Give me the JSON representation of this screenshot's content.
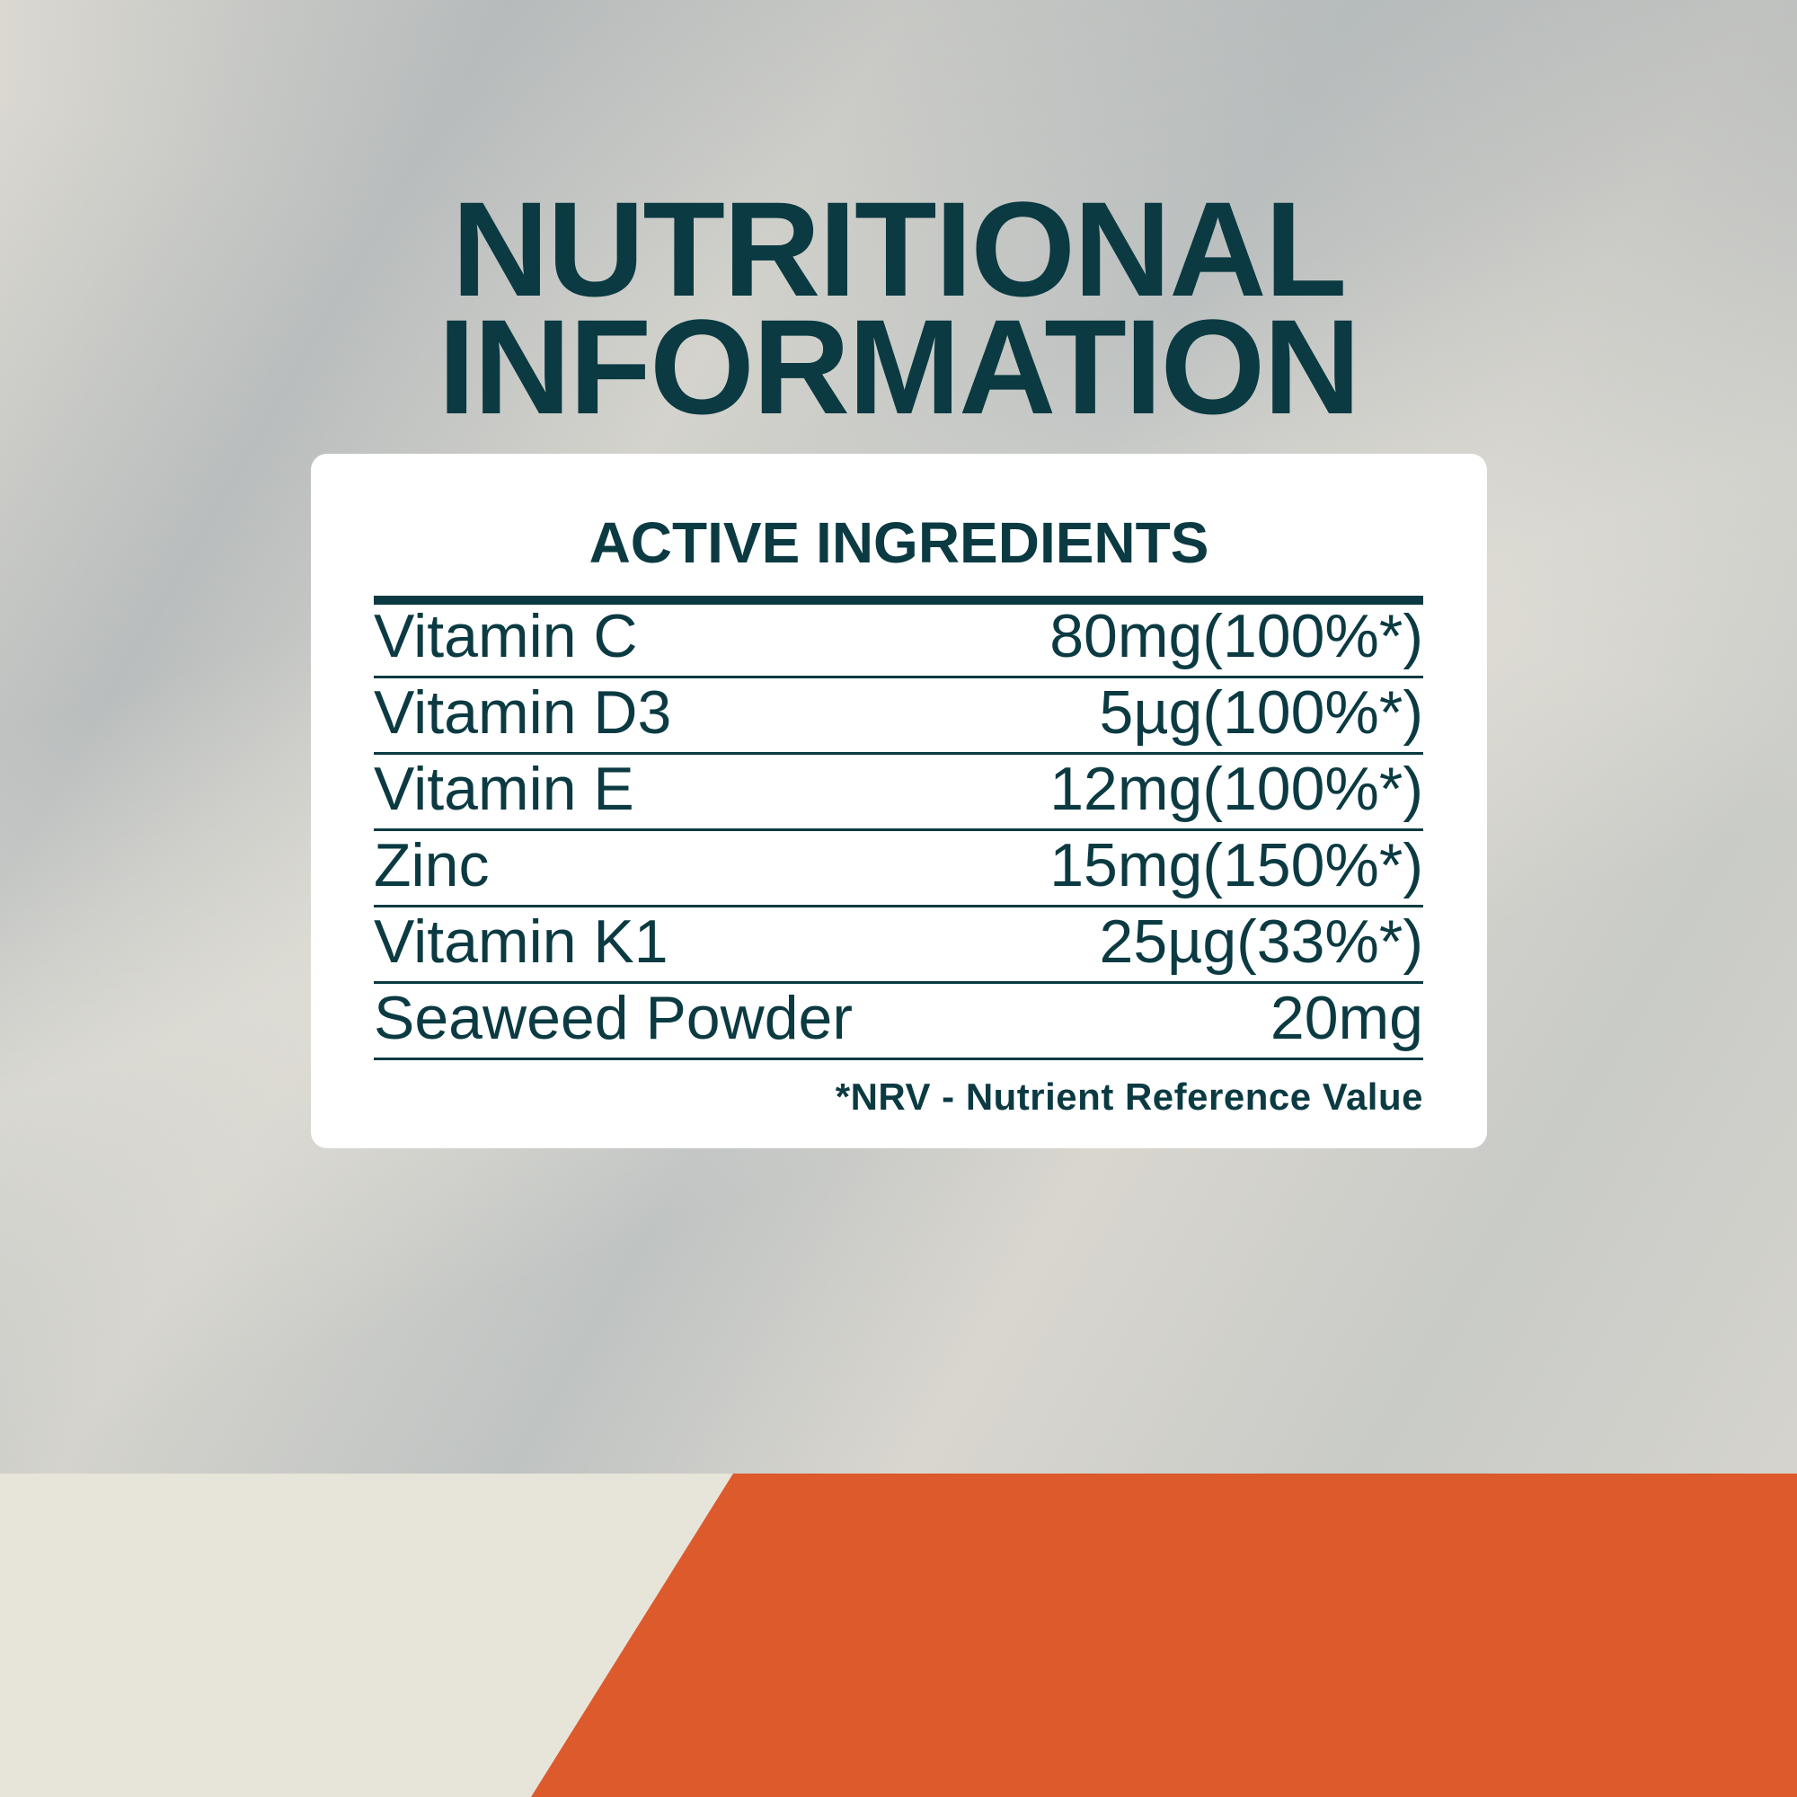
{
  "title": {
    "line1": "NUTRITIONAL",
    "line2": "INFORMATION"
  },
  "card": {
    "heading": "ACTIVE INGREDIENTS",
    "rows": [
      {
        "name": "Vitamin C",
        "value": "80mg(100%*)"
      },
      {
        "name": "Vitamin D3",
        "value": "5µg(100%*)"
      },
      {
        "name": "Vitamin E",
        "value": "12mg(100%*)"
      },
      {
        "name": "Zinc",
        "value": "15mg(150%*)"
      },
      {
        "name": "Vitamin K1",
        "value": "25µg(33%*)"
      },
      {
        "name": "Seaweed Powder",
        "value": "20mg"
      }
    ],
    "footnote": "*NRV - Nutrient Reference Value"
  },
  "colors": {
    "text": "#0b3a42",
    "accent": "#dc5a2c",
    "band": "#e7e4d9",
    "card": "#ffffff"
  }
}
